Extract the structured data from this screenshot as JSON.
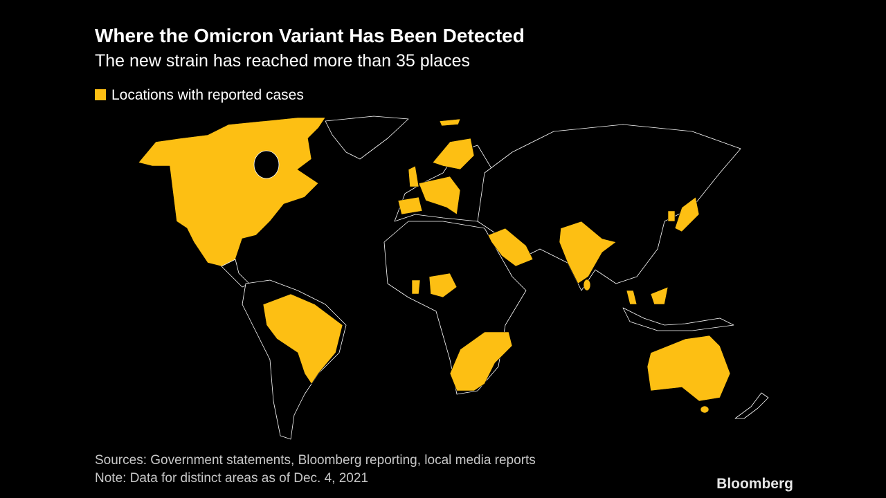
{
  "header": {
    "title": "Where the Omicron Variant Has Been Detected",
    "subtitle": "The new strain has reached more than 35 places"
  },
  "legend": {
    "label": "Locations with reported cases"
  },
  "footer": {
    "sources": "Sources: Government statements, Bloomberg reporting, local media reports",
    "note": "Note: Data for distinct areas as of Dec. 4, 2021",
    "brand": "Bloomberg"
  }
}
